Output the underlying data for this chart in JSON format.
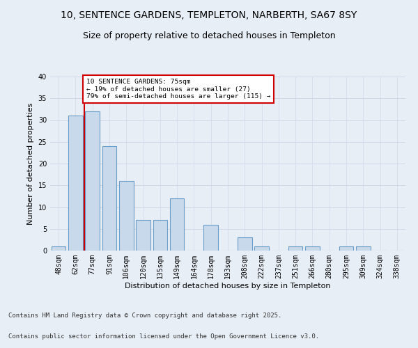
{
  "title_line1": "10, SENTENCE GARDENS, TEMPLETON, NARBERTH, SA67 8SY",
  "title_line2": "Size of property relative to detached houses in Templeton",
  "xlabel": "Distribution of detached houses by size in Templeton",
  "ylabel": "Number of detached properties",
  "categories": [
    "48sqm",
    "62sqm",
    "77sqm",
    "91sqm",
    "106sqm",
    "120sqm",
    "135sqm",
    "149sqm",
    "164sqm",
    "178sqm",
    "193sqm",
    "208sqm",
    "222sqm",
    "237sqm",
    "251sqm",
    "266sqm",
    "280sqm",
    "295sqm",
    "309sqm",
    "324sqm",
    "338sqm"
  ],
  "values": [
    1,
    31,
    32,
    24,
    16,
    7,
    7,
    12,
    0,
    6,
    0,
    3,
    1,
    0,
    1,
    1,
    0,
    1,
    1,
    0,
    0
  ],
  "bar_color": "#c8d9eb",
  "bar_edge_color": "#6a9dc8",
  "grid_color": "#d0d8e8",
  "background_color": "#e8eef6",
  "annotation_text": "10 SENTENCE GARDENS: 75sqm\n← 19% of detached houses are smaller (27)\n79% of semi-detached houses are larger (115) →",
  "annotation_box_color": "#ffffff",
  "annotation_box_edge": "#cc0000",
  "vline_x_index": 1.5,
  "vline_color": "#cc0000",
  "ylim": [
    0,
    40
  ],
  "yticks": [
    0,
    5,
    10,
    15,
    20,
    25,
    30,
    35,
    40
  ],
  "footer_line1": "Contains HM Land Registry data © Crown copyright and database right 2025.",
  "footer_line2": "Contains public sector information licensed under the Open Government Licence v3.0.",
  "title_fontsize": 10,
  "subtitle_fontsize": 9,
  "axis_label_fontsize": 8,
  "tick_fontsize": 7,
  "footer_fontsize": 6.5
}
